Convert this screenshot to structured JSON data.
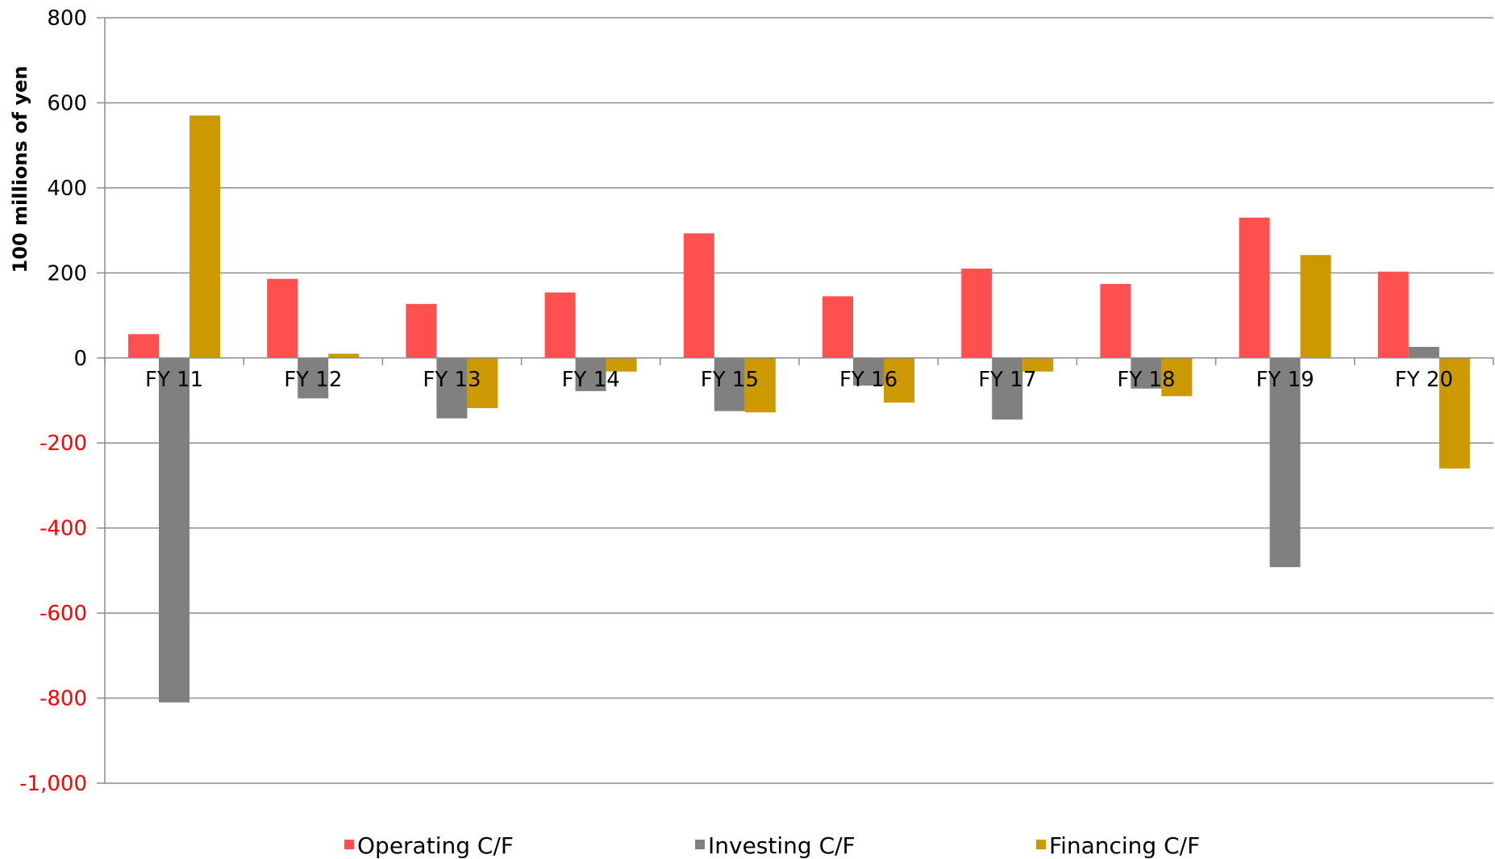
{
  "chart_data": {
    "type": "bar",
    "title": "",
    "ylabel": "100 millions of yen",
    "xlabel": "",
    "categories": [
      "FY 11",
      "FY 12",
      "FY 13",
      "FY 14",
      "FY 15",
      "FY 16",
      "FY 17",
      "FY 18",
      "FY 19",
      "FY 20"
    ],
    "series": [
      {
        "name": "Operating C/F",
        "color": "#ff5050",
        "values": [
          56,
          186,
          127,
          154,
          293,
          145,
          210,
          174,
          330,
          203
        ]
      },
      {
        "name": "Investing C/F",
        "color": "#808080",
        "values": [
          -810,
          -95,
          -142,
          -78,
          -125,
          -65,
          -145,
          -72,
          -492,
          26
        ]
      },
      {
        "name": "Financing C/F",
        "color": "#cc9900",
        "values": [
          570,
          10,
          -118,
          -32,
          -128,
          -105,
          -32,
          -90,
          242,
          -260
        ]
      }
    ],
    "ylim": [
      -1000,
      800
    ],
    "y_ticks": [
      {
        "value": 800,
        "label": "800"
      },
      {
        "value": 600,
        "label": "600"
      },
      {
        "value": 400,
        "label": "400"
      },
      {
        "value": 200,
        "label": "200"
      },
      {
        "value": 0,
        "label": "0"
      },
      {
        "value": -200,
        "label": "-200"
      },
      {
        "value": -400,
        "label": "-400"
      },
      {
        "value": -600,
        "label": "-600"
      },
      {
        "value": -800,
        "label": "-800"
      },
      {
        "value": -1000,
        "label": "-1,000"
      }
    ],
    "negative_tick_color": "#ff0000",
    "positive_tick_color": "#000000",
    "grid": true,
    "legend_position": "bottom"
  }
}
